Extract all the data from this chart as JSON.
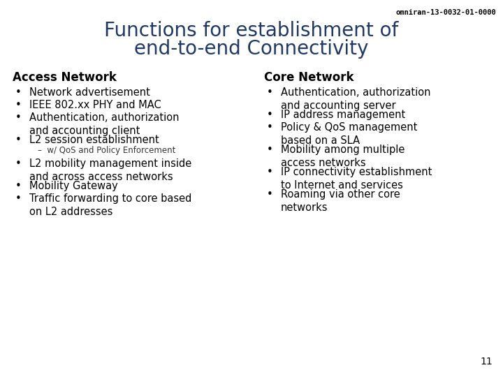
{
  "background_color": "#ffffff",
  "header_ref": "omniran-13-0032-01-0000",
  "header_ref_color": "#000000",
  "header_ref_fontsize": 7.5,
  "title_line1": "Functions for establishment of",
  "title_line2": "end-to-end Connectivity",
  "title_color": "#1F3864",
  "title_fontsize": 20,
  "left_heading": "Access Network",
  "right_heading": "Core Network",
  "heading_fontsize": 12,
  "heading_color": "#000000",
  "bullet_fontsize": 10.5,
  "bullet_color": "#000000",
  "sub_bullet_fontsize": 8.5,
  "sub_bullet_color": "#333333",
  "left_bullets": [
    {
      "text": "Network advertisement",
      "sub": null
    },
    {
      "text": "IEEE 802.xx PHY and MAC",
      "sub": null
    },
    {
      "text": "Authentication, authorization\nand accounting client",
      "sub": null
    },
    {
      "text": "L2 session establishment",
      "sub": "–  w/ QoS and Policy Enforcement"
    }
  ],
  "left_bullets2": [
    {
      "text": "L2 mobility management inside\nand across access networks",
      "sub": null
    },
    {
      "text": "Mobility Gateway",
      "sub": null
    },
    {
      "text": "Traffic forwarding to core based\non L2 addresses",
      "sub": null
    }
  ],
  "right_bullets": [
    {
      "text": "Authentication, authorization\nand accounting server",
      "sub": null
    },
    {
      "text": "IP address management",
      "sub": null
    },
    {
      "text": "Policy & QoS management\nbased on a SLA",
      "sub": null
    },
    {
      "text": "Mobility among multiple\naccess networks",
      "sub": null
    },
    {
      "text": "IP connectivity establishment\nto Internet and services",
      "sub": null
    },
    {
      "text": "Roaming via other core\nnetworks",
      "sub": null
    }
  ],
  "page_number": "11",
  "page_number_fontsize": 10
}
